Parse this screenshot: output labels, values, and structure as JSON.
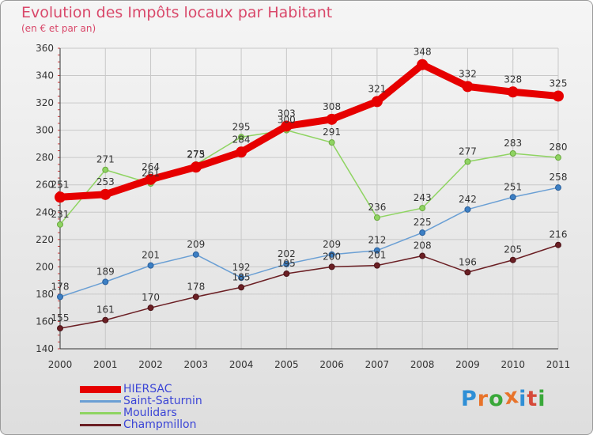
{
  "header": {
    "title": "Evolution des Impôts locaux par Habitant",
    "subtitle": "(en € et par an)"
  },
  "logo": {
    "text": "Proxiti",
    "letters": [
      "P",
      "r",
      "o",
      "x",
      "i",
      "t",
      "i"
    ],
    "colors": [
      "#2f8fd6",
      "#e8732a",
      "#3aa83a",
      "#e8732a",
      "#2f8fd6",
      "#d64a3a",
      "#3aa83a"
    ]
  },
  "chart_data": {
    "type": "line",
    "title": "Evolution des Impôts locaux par Habitant",
    "subtitle": "(en € et par an)",
    "categories": [
      "2000",
      "2001",
      "2002",
      "2003",
      "2004",
      "2005",
      "2006",
      "2007",
      "2008",
      "2009",
      "2010",
      "2011"
    ],
    "ylim": [
      140,
      360
    ],
    "yticks": [
      140,
      160,
      180,
      200,
      220,
      240,
      260,
      280,
      300,
      320,
      340,
      360
    ],
    "grid": true,
    "legend_placement": "bottom-left",
    "series": [
      {
        "name": "HIERSAC",
        "color": "#e60000",
        "values": [
          251,
          253,
          264,
          273,
          284,
          303,
          308,
          321,
          348,
          332,
          328,
          325
        ]
      },
      {
        "name": "Saint-Saturnin",
        "color": "#6a9fd4",
        "values": [
          178,
          189,
          201,
          209,
          192,
          202,
          209,
          212,
          225,
          242,
          251,
          258
        ]
      },
      {
        "name": "Moulidars",
        "color": "#8fd462",
        "values": [
          231,
          271,
          261,
          275,
          295,
          300,
          291,
          236,
          243,
          277,
          283,
          280
        ]
      },
      {
        "name": "Champmillon",
        "color": "#6b1f24",
        "values": [
          155,
          161,
          170,
          178,
          185,
          195,
          200,
          201,
          208,
          196,
          205,
          216
        ]
      }
    ]
  }
}
